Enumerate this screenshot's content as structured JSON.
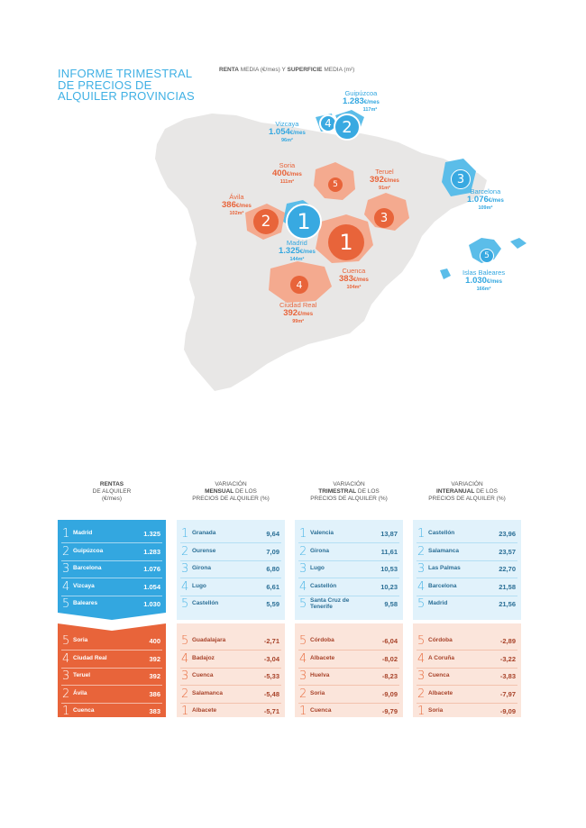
{
  "title": "INFORME TRIMESTRAL DE PRECIOS DE ALQUILER PROVINCIAS",
  "map_caption": {
    "renta": "RENTA",
    "media1": " MEDIA (€/mes) Y ",
    "superficie": "SUPERFICIE",
    "media2": " MEDIA (m²)"
  },
  "colors": {
    "blue": "#33a7e0",
    "orange": "#e8643a",
    "map_gray": "#e8e7e6",
    "light_blue_bg": "#e1f2fb",
    "light_orange_bg": "#fbe5db"
  },
  "map_labels": {
    "guipuzcoa": {
      "name": "Guipúzcoa",
      "price": "1.283",
      "unit": "€/mes",
      "surface": "117m²",
      "rank": "2"
    },
    "vizcaya": {
      "name": "Vizcaya",
      "price": "1.054",
      "unit": "€/mes",
      "surface": "96m²",
      "rank": "4"
    },
    "soria": {
      "name": "Soria",
      "price": "400",
      "unit": "€/mes",
      "surface": "111m²",
      "rank": "5"
    },
    "teruel": {
      "name": "Teruel",
      "price": "392",
      "unit": "€/mes",
      "surface": "91m²",
      "rank": "3"
    },
    "barcelona": {
      "name": "Barcelona",
      "price": "1.076",
      "unit": "€/mes",
      "surface": "109m²",
      "rank": "3"
    },
    "avila": {
      "name": "Ávila",
      "price": "386",
      "unit": "€/mes",
      "surface": "102m²",
      "rank": "2"
    },
    "madrid": {
      "name": "Madrid",
      "price": "1.325",
      "unit": "€/mes",
      "surface": "144m²",
      "rank": "1"
    },
    "cuenca": {
      "name": "Cuenca",
      "price": "383",
      "unit": "€/mes",
      "surface": "104m²",
      "rank": "1"
    },
    "baleares": {
      "name": "Islas Baleares",
      "price": "1.030",
      "unit": "€/mes",
      "surface": "166m²",
      "rank": "5"
    },
    "ciudad_real": {
      "name": "Ciudad Real",
      "price": "392",
      "unit": "€/mes",
      "surface": "99m²",
      "rank": "4"
    }
  },
  "tables": [
    {
      "head": {
        "bold1": "RENTAS",
        "line2": "DE ALQUILER",
        "line3": "(€/mes)"
      },
      "top": [
        {
          "n": "1",
          "city": "Madrid",
          "val": "1.325"
        },
        {
          "n": "2",
          "city": "Guipúzcoa",
          "val": "1.283"
        },
        {
          "n": "3",
          "city": "Barcelona",
          "val": "1.076"
        },
        {
          "n": "4",
          "city": "Vizcaya",
          "val": "1.054"
        },
        {
          "n": "5",
          "city": "Baleares",
          "val": "1.030"
        }
      ],
      "bottom": [
        {
          "n": "5",
          "city": "Soria",
          "val": "400"
        },
        {
          "n": "4",
          "city": "Ciudad Real",
          "val": "392"
        },
        {
          "n": "3",
          "city": "Teruel",
          "val": "392"
        },
        {
          "n": "2",
          "city": "Ávila",
          "val": "386"
        },
        {
          "n": "1",
          "city": "Cuenca",
          "val": "383"
        }
      ]
    },
    {
      "head": {
        "line1": "VARIACIÓN",
        "bold": "MENSUAL",
        "rest": " DE LOS",
        "line3": "PRECIOS DE ALQUILER (%)"
      },
      "top": [
        {
          "n": "1",
          "city": "Granada",
          "val": "9,64"
        },
        {
          "n": "2",
          "city": "Ourense",
          "val": "7,09"
        },
        {
          "n": "3",
          "city": "Girona",
          "val": "6,80"
        },
        {
          "n": "4",
          "city": "Lugo",
          "val": "6,61"
        },
        {
          "n": "5",
          "city": "Castellón",
          "val": "5,59"
        }
      ],
      "bottom": [
        {
          "n": "5",
          "city": "Guadalajara",
          "val": "-2,71"
        },
        {
          "n": "4",
          "city": "Badajoz",
          "val": "-3,04"
        },
        {
          "n": "3",
          "city": "Cuenca",
          "val": "-5,33"
        },
        {
          "n": "2",
          "city": "Salamanca",
          "val": "-5,48"
        },
        {
          "n": "1",
          "city": "Albacete",
          "val": "-5,71"
        }
      ]
    },
    {
      "head": {
        "line1": "VARIACIÓN",
        "bold": "TRIMESTRAL",
        "rest": " DE LOS",
        "line3": "PRECIOS DE ALQUILER (%)"
      },
      "top": [
        {
          "n": "1",
          "city": "Valencia",
          "val": "13,87"
        },
        {
          "n": "2",
          "city": "Girona",
          "val": "11,61"
        },
        {
          "n": "3",
          "city": "Lugo",
          "val": "10,53"
        },
        {
          "n": "4",
          "city": "Castellón",
          "val": "10,23"
        },
        {
          "n": "5",
          "city": "Santa Cruz de Tenerife",
          "val": "9,58"
        }
      ],
      "bottom": [
        {
          "n": "5",
          "city": "Córdoba",
          "val": "-6,04"
        },
        {
          "n": "4",
          "city": "Albacete",
          "val": "-8,02"
        },
        {
          "n": "3",
          "city": "Huelva",
          "val": "-8,23"
        },
        {
          "n": "2",
          "city": "Soria",
          "val": "-9,09"
        },
        {
          "n": "1",
          "city": "Cuenca",
          "val": "-9,79"
        }
      ]
    },
    {
      "head": {
        "line1": "VARIACIÓN",
        "bold": "INTERANUAL",
        "rest": " DE LOS",
        "line3": "PRECIOS DE ALQUILER (%)"
      },
      "top": [
        {
          "n": "1",
          "city": "Castellón",
          "val": "23,96"
        },
        {
          "n": "2",
          "city": "Salamanca",
          "val": "23,57"
        },
        {
          "n": "3",
          "city": "Las Palmas",
          "val": "22,70"
        },
        {
          "n": "4",
          "city": "Barcelona",
          "val": "21,58"
        },
        {
          "n": "5",
          "city": "Madrid",
          "val": "21,56"
        }
      ],
      "bottom": [
        {
          "n": "5",
          "city": "Córdoba",
          "val": "-2,89"
        },
        {
          "n": "4",
          "city": "A Coruña",
          "val": "-3,22"
        },
        {
          "n": "3",
          "city": "Cuenca",
          "val": "-3,83"
        },
        {
          "n": "2",
          "city": "Albacete",
          "val": "-7,97"
        },
        {
          "n": "1",
          "city": "Soria",
          "val": "-9,09"
        }
      ]
    }
  ]
}
